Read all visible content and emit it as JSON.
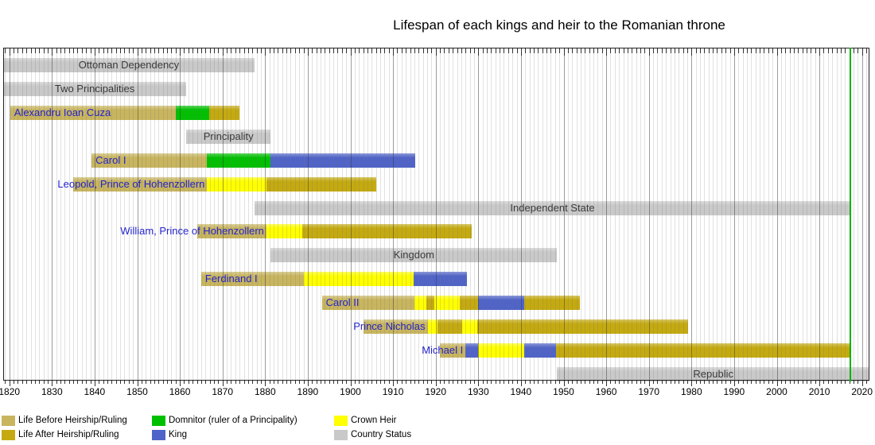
{
  "title": "Lifespan of each kings and heir to the Romanian throne",
  "colors": {
    "life_before": "#c8b55e",
    "life_after": "#c4aa10",
    "domnitor": "#00c000",
    "king": "#4f63c8",
    "heir": "#ffff00",
    "status": "#c9c9c9",
    "now_line": "#00b400"
  },
  "chart_data": {
    "type": "gantt-timeline",
    "title": "Lifespan of each kings and heir to the Romanian throne",
    "x_axis": {
      "min": 1820,
      "max": 2020,
      "tick_interval": 10,
      "minor_interval": 1,
      "tick_labels": [
        "1820",
        "1830",
        "1840",
        "1850",
        "1860",
        "1870",
        "1880",
        "1890",
        "1900",
        "1910",
        "1920",
        "1930",
        "1940",
        "1950",
        "1960",
        "1970",
        "1980",
        "1990",
        "2000",
        "2010",
        "2020"
      ]
    },
    "now_line_year": 2017.3,
    "rows": [
      {
        "kind": "status",
        "label": "Ottoman Dependency",
        "start": 1818.5,
        "end": 1877.5
      },
      {
        "kind": "status",
        "label": "Two Principalities",
        "start": 1818.5,
        "end": 1861.5
      },
      {
        "kind": "person",
        "label": "Alexandru Ioan Cuza",
        "label_align": "left",
        "segments": [
          {
            "type": "life_before",
            "start": 1820.2,
            "end": 1859.0
          },
          {
            "type": "domnitor",
            "start": 1859.0,
            "end": 1866.9
          },
          {
            "type": "life_after",
            "start": 1866.9,
            "end": 1873.9
          }
        ]
      },
      {
        "kind": "status",
        "label": "Principality",
        "start": 1861.5,
        "end": 1881.3
      },
      {
        "kind": "person",
        "label": "Carol I",
        "label_align": "left",
        "segments": [
          {
            "type": "life_before",
            "start": 1839.3,
            "end": 1866.3
          },
          {
            "type": "domnitor",
            "start": 1866.3,
            "end": 1881.2
          },
          {
            "type": "king",
            "start": 1881.2,
            "end": 1915.2
          }
        ]
      },
      {
        "kind": "person",
        "label": "Leopold, Prince of Hohenzollern",
        "label_align": "right",
        "segments": [
          {
            "type": "life_before",
            "start": 1835.0,
            "end": 1866.4
          },
          {
            "type": "heir",
            "start": 1866.4,
            "end": 1880.4
          },
          {
            "type": "life_after",
            "start": 1880.4,
            "end": 1906.1
          }
        ]
      },
      {
        "kind": "status",
        "label": "Independent State",
        "start": 1877.5,
        "end": 2017.3
      },
      {
        "kind": "person",
        "label": "William, Prince of Hohenzollern",
        "label_align": "right",
        "segments": [
          {
            "type": "life_before",
            "start": 1864.0,
            "end": 1880.3
          },
          {
            "type": "heir",
            "start": 1880.3,
            "end": 1888.8
          },
          {
            "type": "life_after",
            "start": 1888.8,
            "end": 1928.5
          }
        ]
      },
      {
        "kind": "status",
        "label": "Kingdom",
        "start": 1881.3,
        "end": 1948.5
      },
      {
        "kind": "person",
        "label": "Ferdinand I",
        "label_align": "left",
        "segments": [
          {
            "type": "life_before",
            "start": 1865.0,
            "end": 1889.0
          },
          {
            "type": "heir",
            "start": 1889.0,
            "end": 1914.9
          },
          {
            "type": "king",
            "start": 1914.9,
            "end": 1927.4
          }
        ]
      },
      {
        "kind": "person",
        "label": "Carol II",
        "label_align": "left",
        "segments": [
          {
            "type": "life_before",
            "start": 1893.3,
            "end": 1915.0
          },
          {
            "type": "heir",
            "start": 1915.0,
            "end": 1917.8
          },
          {
            "type": "life_after",
            "start": 1917.8,
            "end": 1919.6
          },
          {
            "type": "heir",
            "start": 1919.6,
            "end": 1925.6
          },
          {
            "type": "life_after",
            "start": 1925.6,
            "end": 1930.0
          },
          {
            "type": "king",
            "start": 1930.0,
            "end": 1940.7
          },
          {
            "type": "life_after",
            "start": 1940.7,
            "end": 1953.9
          }
        ]
      },
      {
        "kind": "person",
        "label": "Prince Nicholas",
        "label_align": "right",
        "segments": [
          {
            "type": "life_before",
            "start": 1903.1,
            "end": 1918.1
          },
          {
            "type": "heir",
            "start": 1918.1,
            "end": 1920.4
          },
          {
            "type": "life_after",
            "start": 1920.4,
            "end": 1926.3
          },
          {
            "type": "heir",
            "start": 1926.3,
            "end": 1929.8
          },
          {
            "type": "life_after",
            "start": 1929.8,
            "end": 1979.2
          }
        ]
      },
      {
        "kind": "person",
        "label": "Michael I",
        "label_align": "right",
        "segments": [
          {
            "type": "life_before",
            "start": 1920.9,
            "end": 1927.0
          },
          {
            "type": "king",
            "start": 1927.0,
            "end": 1929.9
          },
          {
            "type": "heir",
            "start": 1929.9,
            "end": 1940.7
          },
          {
            "type": "king",
            "start": 1940.7,
            "end": 1948.3
          },
          {
            "type": "life_after",
            "start": 1948.3,
            "end": 2017.3
          }
        ]
      },
      {
        "kind": "status",
        "label": "Republic",
        "start": 1948.5,
        "end": 2021.8
      }
    ],
    "legend": {
      "rows": [
        [
          {
            "type": "life_before",
            "label": "Life Before Heirship/Ruling"
          },
          {
            "type": "domnitor",
            "label": "Domnitor (ruler of a Principality)"
          },
          {
            "type": "heir",
            "label": "Crown Heir"
          }
        ],
        [
          {
            "type": "life_after",
            "label": "Life After Heirship/Ruling"
          },
          {
            "type": "king",
            "label": "King"
          },
          {
            "type": "status",
            "label": "Country Status"
          }
        ]
      ]
    }
  }
}
